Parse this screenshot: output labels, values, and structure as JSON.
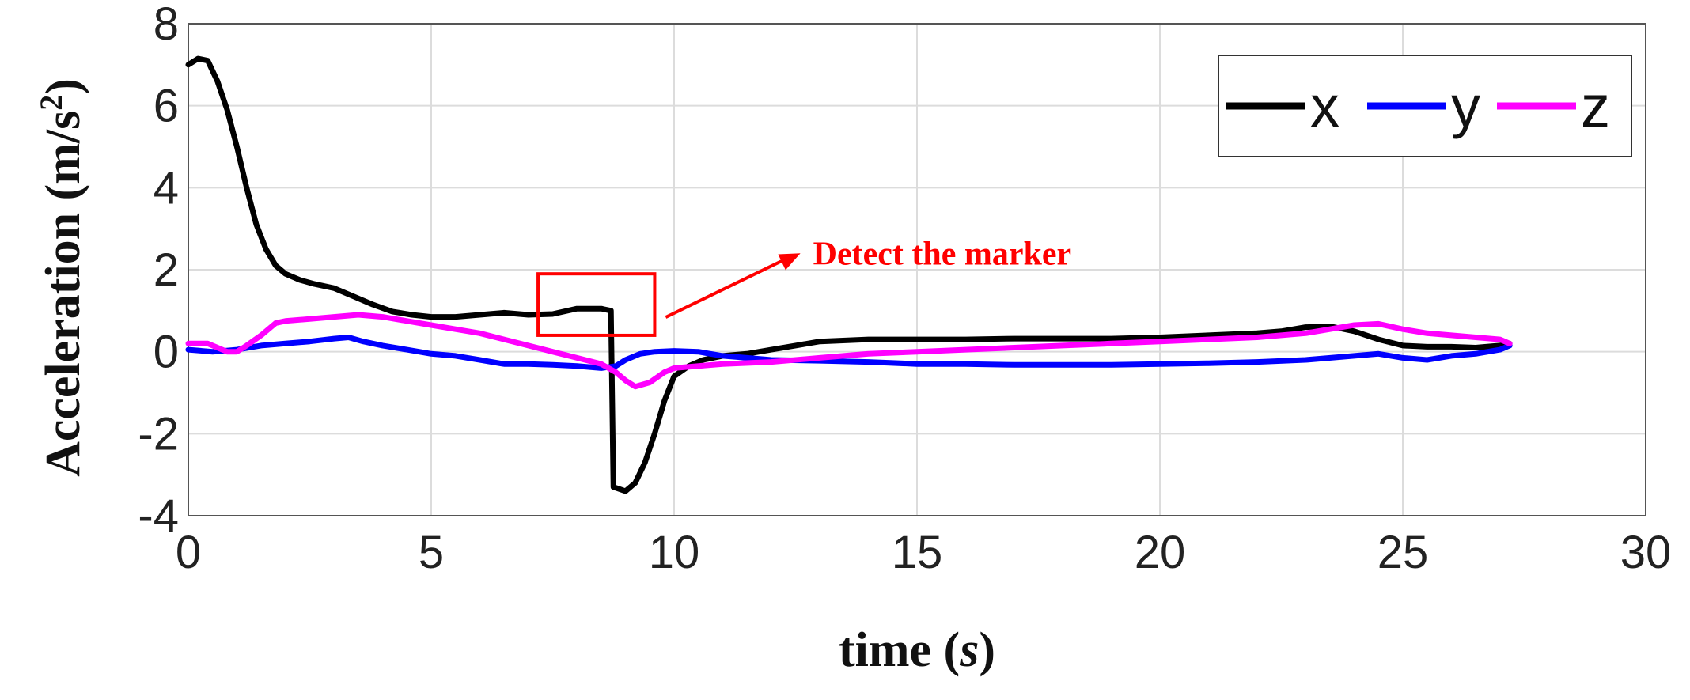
{
  "chart_data": {
    "type": "line",
    "xlabel": "time",
    "xlabel_unit": "s",
    "ylabel": "Acceleration (m/s",
    "ylabel_sup": "2",
    "ylabel_close": ")",
    "xlim": [
      0,
      30
    ],
    "ylim": [
      -4,
      8
    ],
    "xticks": [
      0,
      5,
      10,
      15,
      20,
      25,
      30
    ],
    "yticks": [
      -4,
      -2,
      0,
      2,
      4,
      6,
      8
    ],
    "grid": true,
    "legend_position": "top-right",
    "series": [
      {
        "name": "x",
        "color": "#000000",
        "points": [
          [
            0,
            7.0
          ],
          [
            0.2,
            7.15
          ],
          [
            0.4,
            7.1
          ],
          [
            0.6,
            6.6
          ],
          [
            0.8,
            5.9
          ],
          [
            1.0,
            5.0
          ],
          [
            1.2,
            4.0
          ],
          [
            1.4,
            3.1
          ],
          [
            1.6,
            2.5
          ],
          [
            1.8,
            2.1
          ],
          [
            2.0,
            1.9
          ],
          [
            2.3,
            1.75
          ],
          [
            2.6,
            1.65
          ],
          [
            3.0,
            1.55
          ],
          [
            3.4,
            1.35
          ],
          [
            3.8,
            1.15
          ],
          [
            4.2,
            0.98
          ],
          [
            4.6,
            0.9
          ],
          [
            5.0,
            0.85
          ],
          [
            5.5,
            0.85
          ],
          [
            6.0,
            0.9
          ],
          [
            6.5,
            0.95
          ],
          [
            7.0,
            0.9
          ],
          [
            7.5,
            0.92
          ],
          [
            8.0,
            1.05
          ],
          [
            8.5,
            1.05
          ],
          [
            8.7,
            1.0
          ],
          [
            8.75,
            -3.3
          ],
          [
            9.0,
            -3.4
          ],
          [
            9.2,
            -3.2
          ],
          [
            9.4,
            -2.7
          ],
          [
            9.6,
            -2.0
          ],
          [
            9.8,
            -1.2
          ],
          [
            10.0,
            -0.6
          ],
          [
            10.3,
            -0.35
          ],
          [
            10.6,
            -0.2
          ],
          [
            11.0,
            -0.1
          ],
          [
            11.5,
            -0.05
          ],
          [
            12.0,
            0.05
          ],
          [
            12.5,
            0.15
          ],
          [
            13.0,
            0.25
          ],
          [
            14.0,
            0.3
          ],
          [
            15.0,
            0.3
          ],
          [
            16.0,
            0.3
          ],
          [
            17.0,
            0.32
          ],
          [
            18.0,
            0.32
          ],
          [
            19.0,
            0.32
          ],
          [
            20.0,
            0.35
          ],
          [
            21.0,
            0.4
          ],
          [
            22.0,
            0.45
          ],
          [
            22.5,
            0.5
          ],
          [
            23.0,
            0.6
          ],
          [
            23.5,
            0.62
          ],
          [
            24.0,
            0.5
          ],
          [
            24.5,
            0.3
          ],
          [
            25.0,
            0.15
          ],
          [
            25.5,
            0.12
          ],
          [
            26.0,
            0.12
          ],
          [
            26.5,
            0.1
          ],
          [
            27.0,
            0.15
          ],
          [
            27.2,
            0.2
          ]
        ]
      },
      {
        "name": "y",
        "color": "#0000ff",
        "points": [
          [
            0,
            0.05
          ],
          [
            0.5,
            0.0
          ],
          [
            1.0,
            0.05
          ],
          [
            1.5,
            0.15
          ],
          [
            2.0,
            0.2
          ],
          [
            2.5,
            0.25
          ],
          [
            3.0,
            0.32
          ],
          [
            3.3,
            0.35
          ],
          [
            3.6,
            0.25
          ],
          [
            4.0,
            0.15
          ],
          [
            4.5,
            0.05
          ],
          [
            5.0,
            -0.05
          ],
          [
            5.5,
            -0.1
          ],
          [
            6.0,
            -0.2
          ],
          [
            6.5,
            -0.3
          ],
          [
            7.0,
            -0.3
          ],
          [
            7.5,
            -0.32
          ],
          [
            8.0,
            -0.35
          ],
          [
            8.5,
            -0.4
          ],
          [
            8.8,
            -0.35
          ],
          [
            9.0,
            -0.2
          ],
          [
            9.3,
            -0.05
          ],
          [
            9.6,
            0.0
          ],
          [
            10.0,
            0.02
          ],
          [
            10.5,
            0.0
          ],
          [
            11.0,
            -0.1
          ],
          [
            11.5,
            -0.15
          ],
          [
            12.0,
            -0.2
          ],
          [
            13.0,
            -0.22
          ],
          [
            14.0,
            -0.25
          ],
          [
            15.0,
            -0.3
          ],
          [
            16.0,
            -0.3
          ],
          [
            17.0,
            -0.32
          ],
          [
            18.0,
            -0.32
          ],
          [
            19.0,
            -0.32
          ],
          [
            20.0,
            -0.3
          ],
          [
            21.0,
            -0.28
          ],
          [
            22.0,
            -0.25
          ],
          [
            23.0,
            -0.2
          ],
          [
            24.0,
            -0.1
          ],
          [
            24.5,
            -0.05
          ],
          [
            25.0,
            -0.15
          ],
          [
            25.5,
            -0.2
          ],
          [
            26.0,
            -0.1
          ],
          [
            26.5,
            -0.05
          ],
          [
            27.0,
            0.05
          ],
          [
            27.2,
            0.15
          ]
        ]
      },
      {
        "name": "z",
        "color": "#ff00ff",
        "points": [
          [
            0,
            0.2
          ],
          [
            0.4,
            0.2
          ],
          [
            0.6,
            0.1
          ],
          [
            0.8,
            0.0
          ],
          [
            1.0,
            0.0
          ],
          [
            1.2,
            0.15
          ],
          [
            1.5,
            0.4
          ],
          [
            1.8,
            0.7
          ],
          [
            2.0,
            0.75
          ],
          [
            2.5,
            0.8
          ],
          [
            3.0,
            0.85
          ],
          [
            3.5,
            0.9
          ],
          [
            4.0,
            0.85
          ],
          [
            4.5,
            0.75
          ],
          [
            5.0,
            0.65
          ],
          [
            5.5,
            0.55
          ],
          [
            6.0,
            0.45
          ],
          [
            6.5,
            0.3
          ],
          [
            7.0,
            0.15
          ],
          [
            7.5,
            0.0
          ],
          [
            8.0,
            -0.15
          ],
          [
            8.5,
            -0.3
          ],
          [
            8.8,
            -0.5
          ],
          [
            9.0,
            -0.7
          ],
          [
            9.2,
            -0.85
          ],
          [
            9.5,
            -0.75
          ],
          [
            9.8,
            -0.5
          ],
          [
            10.0,
            -0.4
          ],
          [
            10.5,
            -0.35
          ],
          [
            11.0,
            -0.3
          ],
          [
            12.0,
            -0.25
          ],
          [
            13.0,
            -0.15
          ],
          [
            14.0,
            -0.05
          ],
          [
            15.0,
            0.0
          ],
          [
            16.0,
            0.05
          ],
          [
            17.0,
            0.1
          ],
          [
            18.0,
            0.15
          ],
          [
            19.0,
            0.2
          ],
          [
            20.0,
            0.25
          ],
          [
            21.0,
            0.3
          ],
          [
            22.0,
            0.35
          ],
          [
            23.0,
            0.45
          ],
          [
            23.5,
            0.55
          ],
          [
            24.0,
            0.65
          ],
          [
            24.5,
            0.68
          ],
          [
            25.0,
            0.55
          ],
          [
            25.5,
            0.45
          ],
          [
            26.0,
            0.4
          ],
          [
            26.5,
            0.35
          ],
          [
            27.0,
            0.3
          ],
          [
            27.2,
            0.2
          ]
        ]
      }
    ],
    "annotation": {
      "text": "Detect the marker",
      "color": "#ff0000",
      "box_x": [
        7.2,
        9.6
      ],
      "box_y": [
        0.4,
        1.9
      ],
      "arrow_to": [
        12.6,
        2.4
      ]
    }
  }
}
